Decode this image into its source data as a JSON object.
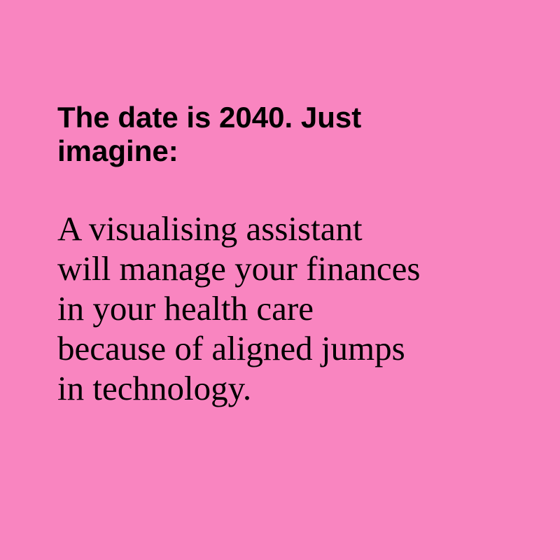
{
  "headline": {
    "lines": [
      "The date is 2040. Just",
      "imagine:"
    ]
  },
  "body": {
    "lines": [
      "A visualising assistant",
      "will manage your finances",
      "in your health care",
      "because of aligned jumps",
      "in technology."
    ]
  },
  "colors": {
    "background": "#f985c0",
    "text": "#000000"
  }
}
